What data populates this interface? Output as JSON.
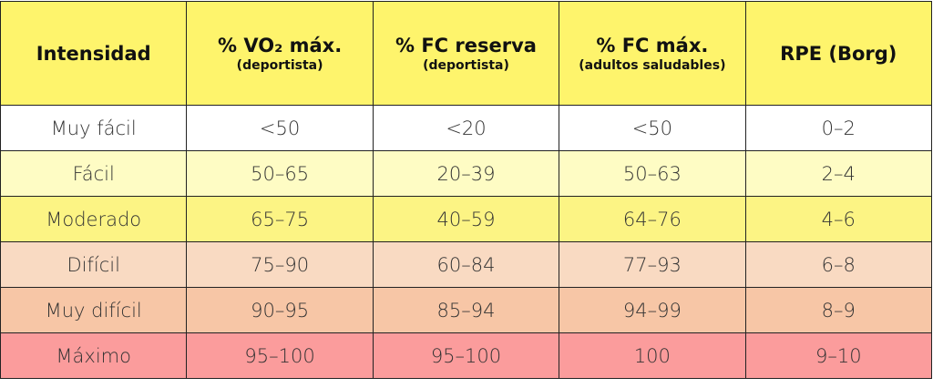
{
  "table": {
    "header": [
      {
        "title": "Intensidad"
      },
      {
        "title": "% VO₂ máx.",
        "subtitle": "(deportista)"
      },
      {
        "title": "% FC reserva",
        "subtitle": "(deportista)"
      },
      {
        "title": "% FC máx.",
        "subtitle": "(adultos saludables)"
      },
      {
        "title": "RPE (Borg)"
      }
    ],
    "rows": [
      [
        "Muy fácil",
        "<50",
        "<20",
        "<50",
        "0–2"
      ],
      [
        "Fácil",
        "50–65",
        "20–39",
        "50–63",
        "2–4"
      ],
      [
        "Moderado",
        "65–75",
        "40–59",
        "64–76",
        "4–6"
      ],
      [
        "Difícil",
        "75–90",
        "60–84",
        "77–93",
        "6–8"
      ],
      [
        "Muy difícil",
        "90–95",
        "85–94",
        "94–99",
        "8–9"
      ],
      [
        "Máximo",
        "95–100",
        "95–100",
        "100",
        "9–10"
      ]
    ]
  }
}
